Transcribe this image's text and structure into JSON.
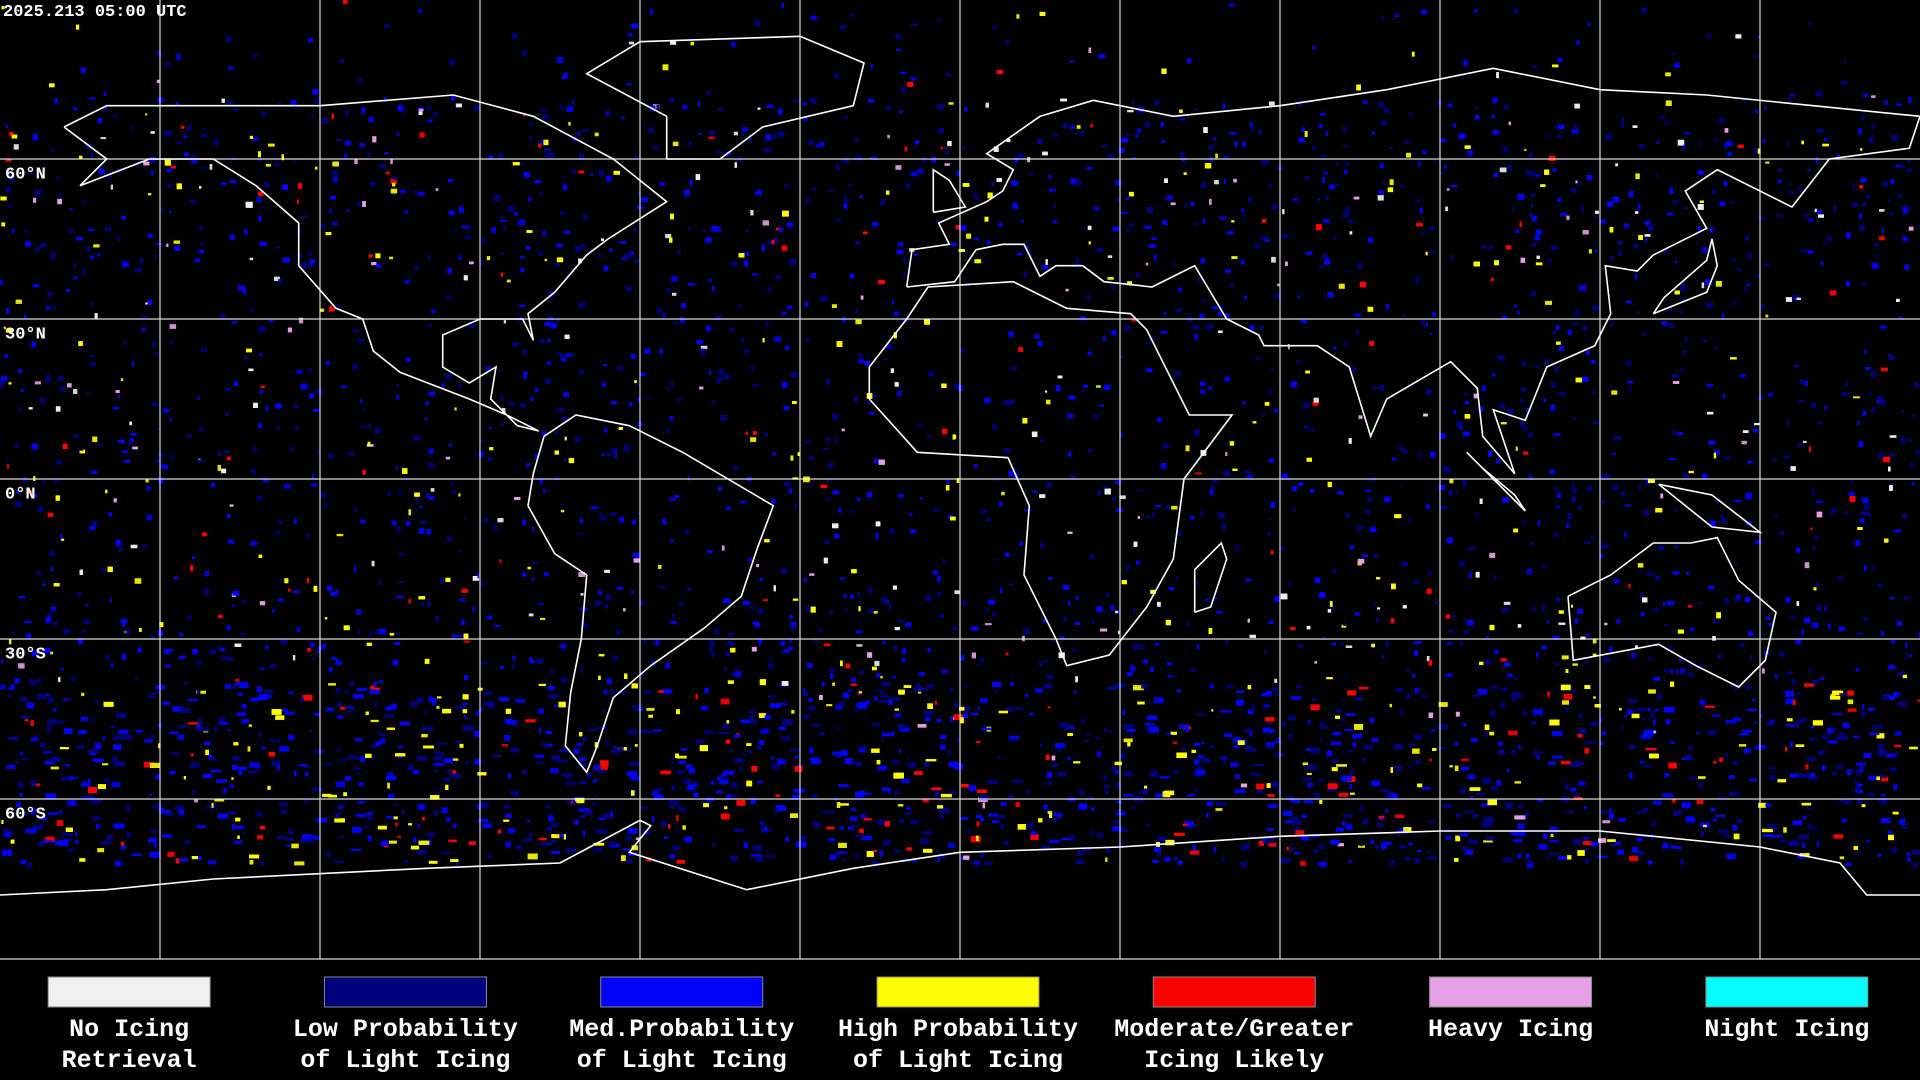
{
  "header": {
    "timestamp": "2025.213 05:00 UTC"
  },
  "latitude_labels": [
    "60°N",
    "30°N",
    "0°N",
    "30°S",
    "60°S"
  ],
  "legend": {
    "items": [
      {
        "lines": [
          "No Icing",
          "Retrieval"
        ],
        "color": "#f0f0f0"
      },
      {
        "lines": [
          "Low Probability",
          "of Light Icing"
        ],
        "color": "#00007f"
      },
      {
        "lines": [
          "Med.Probability",
          "of Light Icing"
        ],
        "color": "#0000ff"
      },
      {
        "lines": [
          "High Probability",
          "of Light Icing"
        ],
        "color": "#ffff00"
      },
      {
        "lines": [
          "Moderate/Greater",
          "Icing Likely"
        ],
        "color": "#ff0000"
      },
      {
        "lines": [
          "Heavy Icing"
        ],
        "color": "#e6a0e6"
      },
      {
        "lines": [
          "Night Icing"
        ],
        "color": "#00ffff"
      }
    ]
  }
}
